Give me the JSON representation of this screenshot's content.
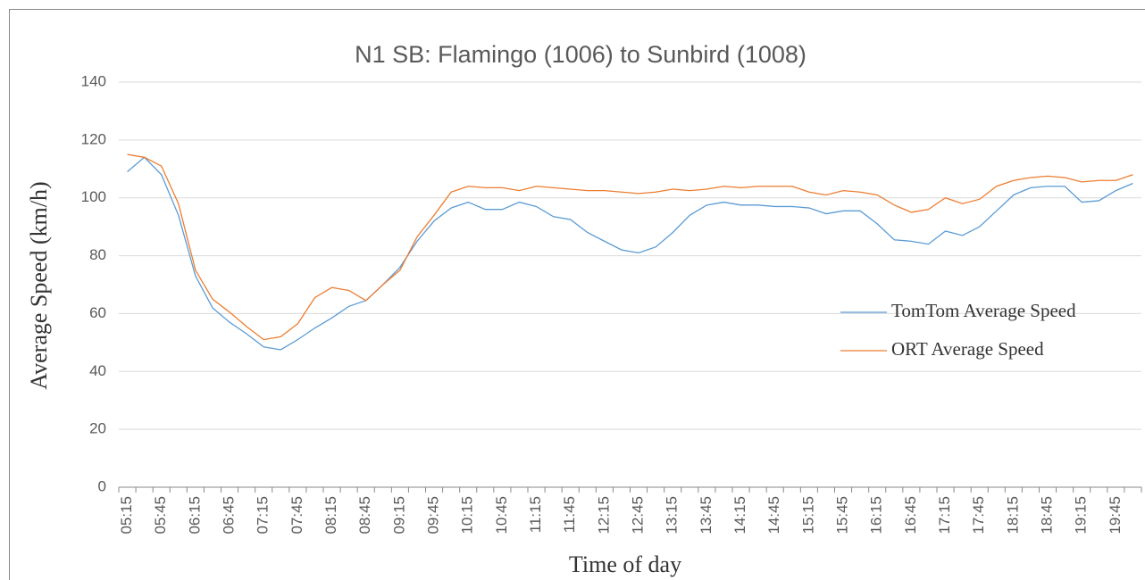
{
  "chart_data": {
    "type": "line",
    "title": "N1 SB: Flamingo (1006) to Sunbird (1008)",
    "x_label": "Time of day",
    "y_label": "Average Speed (km/h)",
    "categories": [
      "05:15",
      null,
      "05:45",
      null,
      "06:15",
      null,
      "06:45",
      null,
      "07:15",
      null,
      "07:45",
      null,
      "08:15",
      null,
      "08:45",
      null,
      "09:15",
      null,
      "09:45",
      null,
      "10:15",
      null,
      "10:45",
      null,
      "11:15",
      null,
      "11:45",
      null,
      "12:15",
      null,
      "12:45",
      null,
      "13:15",
      null,
      "13:45",
      null,
      "14:15",
      null,
      "14:45",
      null,
      "15:15",
      null,
      "15:45",
      null,
      "16:15",
      null,
      "16:45",
      null,
      "17:15",
      null,
      "17:45",
      null,
      "18:15",
      null,
      "18:45",
      null,
      "19:15",
      null,
      "19:45",
      null
    ],
    "series": [
      {
        "name": "TomTom Average Speed",
        "color": "#5b9bd5",
        "values": [
          109,
          114,
          108,
          94,
          73,
          62,
          57,
          53,
          48.5,
          47.5,
          51,
          55,
          58.5,
          62.5,
          64.5,
          70,
          76,
          85,
          92,
          96.5,
          98.5,
          96,
          96,
          98.5,
          97,
          93.5,
          92.5,
          88,
          85,
          82,
          81,
          83,
          88,
          94,
          97.5,
          98.5,
          97.5,
          97.5,
          97,
          97,
          96.5,
          94.5,
          95.5,
          95.5,
          91,
          85.5,
          85,
          84,
          88.5,
          87,
          90,
          95.5,
          101,
          103.5,
          104,
          104,
          98.5,
          99,
          102.5,
          105
        ]
      },
      {
        "name": "ORT Average Speed",
        "color": "#ed7d31",
        "values": [
          115,
          114,
          111,
          98,
          75,
          65,
          60.5,
          55.5,
          51,
          52,
          56.5,
          65.5,
          69,
          68,
          64.5,
          70,
          75,
          86.5,
          94,
          102,
          104,
          103.5,
          103.5,
          102.5,
          104,
          103.5,
          103,
          102.5,
          102.5,
          102,
          101.5,
          102,
          103,
          102.5,
          103,
          104,
          103.5,
          104,
          104,
          104,
          102,
          101,
          102.5,
          102,
          101,
          97.5,
          95,
          96,
          100,
          98,
          99.5,
          104,
          106,
          107,
          107.5,
          107,
          105.5,
          106,
          106,
          108
        ]
      }
    ],
    "ylim": [
      0,
      140
    ],
    "yticks": [
      0,
      20,
      40,
      60,
      80,
      100,
      120,
      140
    ],
    "grid": true,
    "legend": "right"
  }
}
